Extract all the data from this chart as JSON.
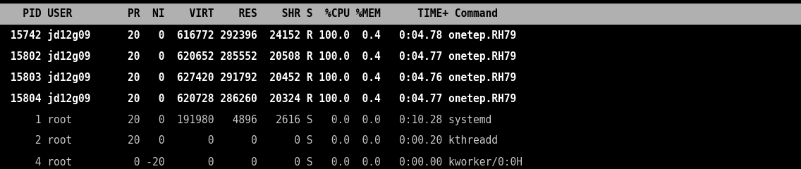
{
  "background_color": "#000000",
  "header_bg_color": "#b0b0b0",
  "header_text_color": "#000000",
  "onetep_text_color": "#ffffff",
  "normal_text_color": "#c8c8c8",
  "header": "   PID USER         PR  NI    VIRT    RES    SHR S  %CPU %MEM      TIME+ Command",
  "rows": [
    {
      "text": " 15742 jd12g09      20   0  616772 292396  24152 R 100.0  0.4   0:04.78 onetep.RH79",
      "bold": true
    },
    {
      "text": " 15802 jd12g09      20   0  620652 285552  20508 R 100.0  0.4   0:04.77 onetep.RH79",
      "bold": true
    },
    {
      "text": " 15803 jd12g09      20   0  627420 291792  20452 R 100.0  0.4   0:04.76 onetep.RH79",
      "bold": true
    },
    {
      "text": " 15804 jd12g09      20   0  620728 286260  20324 R 100.0  0.4   0:04.77 onetep.RH79",
      "bold": true
    },
    {
      "text": "     1 root         20   0  191980   4896   2616 S   0.0  0.0   0:10.28 systemd",
      "bold": false
    },
    {
      "text": "     2 root         20   0       0      0      0 S   0.0  0.0   0:00.20 kthreadd",
      "bold": false
    },
    {
      "text": "     4 root          0 -20       0      0      0 S   0.0  0.0   0:00.00 kworker/0:0H",
      "bold": false
    }
  ],
  "font_size": 10.5,
  "fig_width": 11.36,
  "fig_height": 2.4,
  "dpi": 100
}
